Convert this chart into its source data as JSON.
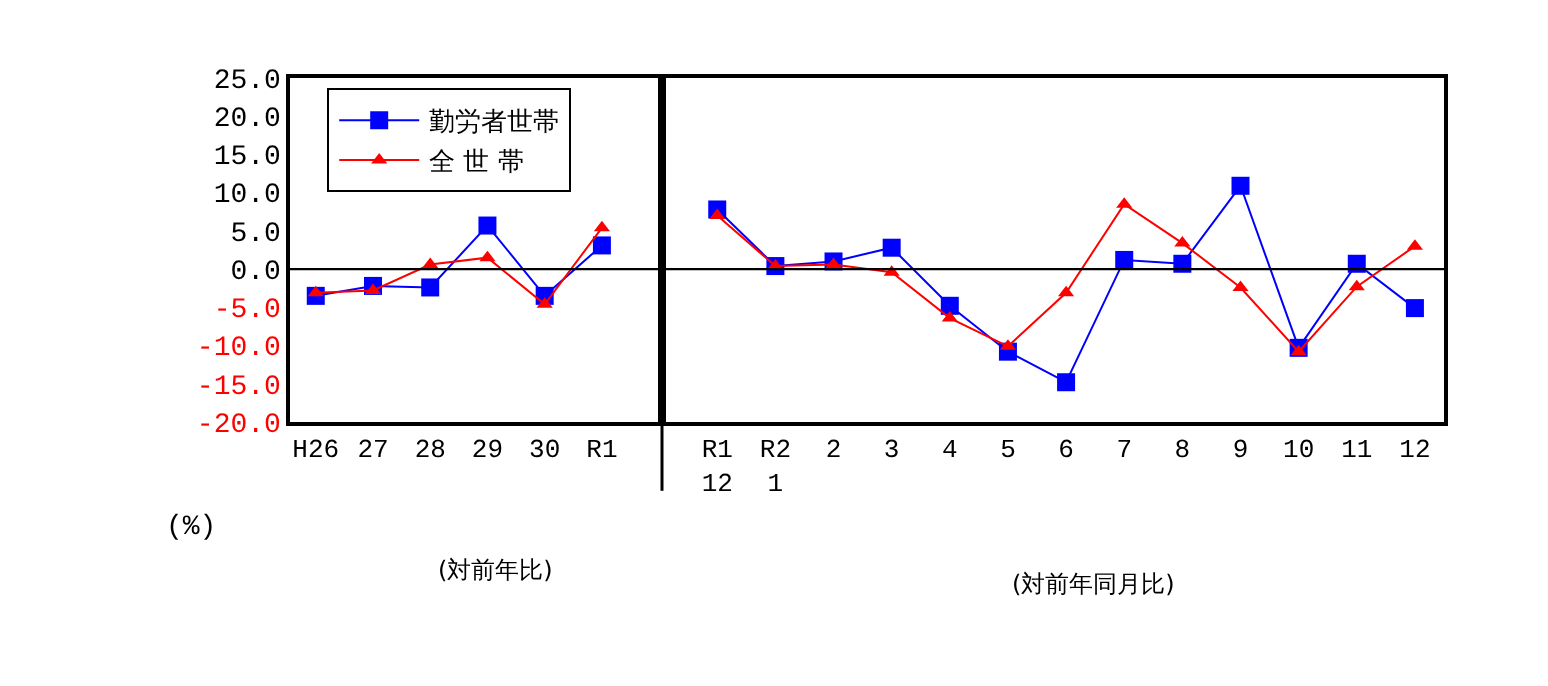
{
  "chart_data": [
    {
      "type": "line",
      "ylabel": "(%)",
      "annotations": [
        "(対前年比)"
      ],
      "categories": [
        "H26",
        "27",
        "28",
        "29",
        "30",
        "R1"
      ],
      "series": [
        {
          "name": "勤労者世帯",
          "color": "#0000ff",
          "marker": "square",
          "values": [
            -3.5,
            -2.2,
            -2.4,
            5.7,
            -3.5,
            3.1
          ]
        },
        {
          "name": "全 世 帯",
          "color": "#ff0000",
          "marker": "triangle",
          "values": [
            -3.1,
            -2.8,
            0.6,
            1.5,
            -4.6,
            5.4
          ]
        }
      ],
      "ylim": [
        -20,
        25
      ],
      "yticks": [
        {
          "value": -20,
          "label": "-20.0"
        },
        {
          "value": -15,
          "label": "-15.0"
        },
        {
          "value": -10,
          "label": "-10.0"
        },
        {
          "value": -5,
          "label": "-5.0"
        },
        {
          "value": 0,
          "label": "0.0"
        },
        {
          "value": 5,
          "label": "5.0"
        },
        {
          "value": 10,
          "label": "10.0"
        },
        {
          "value": 15,
          "label": "15.0"
        },
        {
          "value": 20,
          "label": "20.0"
        },
        {
          "value": 25,
          "label": "25.0"
        }
      ],
      "ref_lines": [
        {
          "axis": "y",
          "value": 0,
          "color": "#000000"
        }
      ],
      "legend": "top left"
    },
    {
      "type": "line",
      "annotations": [
        "(対前年同月比)"
      ],
      "categories": [
        "R1\n12",
        "R2\n1",
        "2",
        "3",
        "4",
        "5",
        "6",
        "7",
        "8",
        "9",
        "10",
        "11",
        "12"
      ],
      "series": [
        {
          "color": "#0000ff",
          "marker": "square",
          "values": [
            7.8,
            0.4,
            1.0,
            2.8,
            -4.8,
            -10.8,
            -14.8,
            1.2,
            0.7,
            10.9,
            -10.3,
            0.7,
            -5.1
          ]
        },
        {
          "color": "#ff0000",
          "marker": "triangle",
          "values": [
            7.0,
            0.4,
            0.6,
            -0.4,
            -6.4,
            -10.1,
            -3.1,
            8.5,
            3.4,
            -2.4,
            -10.8,
            -2.3,
            3.0
          ]
        }
      ],
      "ylim": [
        -20,
        25
      ],
      "ref_lines": [
        {
          "axis": "y",
          "value": 0,
          "color": "#000000"
        }
      ],
      "tick_labels": "x"
    }
  ]
}
